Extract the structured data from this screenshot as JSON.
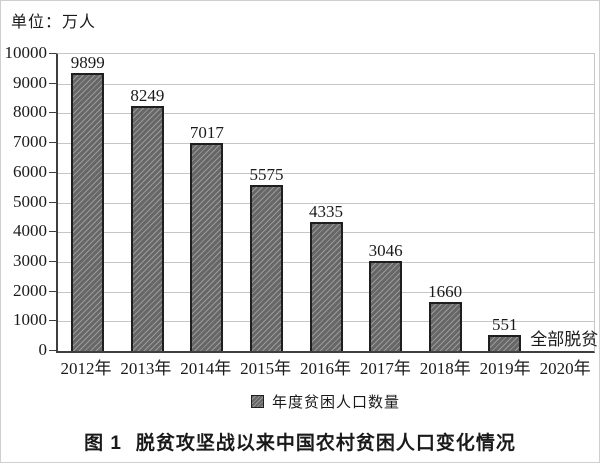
{
  "unit_label": "单位：万人",
  "chart_data": {
    "type": "bar",
    "title": "图 1  脱贫攻坚战以来中国农村贫困人口变化情况",
    "categories": [
      "2012年",
      "2013年",
      "2014年",
      "2015年",
      "2016年",
      "2017年",
      "2018年",
      "2019年",
      "2020年"
    ],
    "values": [
      9899,
      8249,
      7017,
      5575,
      4335,
      3046,
      1660,
      551,
      0
    ],
    "bar_value_labels": [
      "9899",
      "8249",
      "7017",
      "5575",
      "4335",
      "3046",
      "1660",
      "551",
      ""
    ],
    "unit": "万人",
    "xlabel": "",
    "ylabel": "单位：万人",
    "ylim": [
      0,
      10000
    ],
    "ytick_step": 1000,
    "ytick_labels": [
      "10000",
      "9000",
      "8000",
      "7000",
      "6000",
      "5000",
      "4000",
      "3000",
      "2000",
      "1000",
      "0"
    ],
    "grid": true,
    "legend_entries": [
      "年度贫困人口数量"
    ],
    "legend_position": "bottom",
    "annotations": [
      {
        "text": "全部脱贫",
        "category": "2020年",
        "position": "baseline"
      }
    ]
  },
  "legend": {
    "label": "年度贫困人口数量"
  },
  "caption": {
    "figure_no": "图 1",
    "text": "脱贫攻坚战以来中国农村贫困人口变化情况"
  },
  "colors": {
    "bar_fill": "#676767",
    "bar_stripe": "#9a9a9a",
    "bar_border": "#1f1f1f",
    "gridline": "#c6c6c6",
    "axis": "#3f3f3f",
    "text": "#1a1a1a",
    "frame_border": "#cfcfcf"
  }
}
